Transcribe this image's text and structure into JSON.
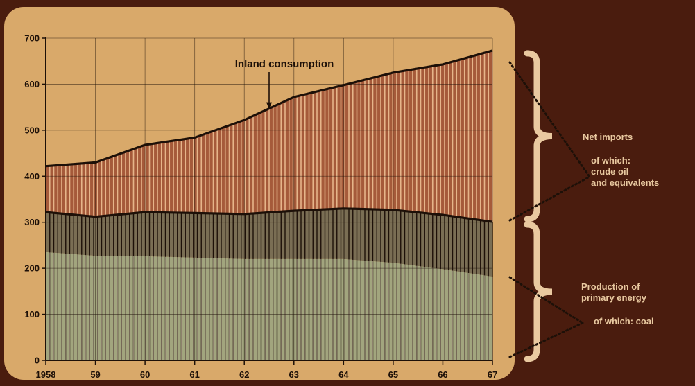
{
  "chart_data": {
    "type": "area",
    "x": [
      1958,
      1959,
      1960,
      1961,
      1962,
      1963,
      1964,
      1965,
      1966,
      1967
    ],
    "xtick_labels": [
      "1958",
      "59",
      "60",
      "61",
      "62",
      "63",
      "64",
      "65",
      "66",
      "67"
    ],
    "ylim": [
      0,
      700
    ],
    "yticks": [
      0,
      100,
      200,
      300,
      400,
      500,
      600,
      700
    ],
    "grid": true,
    "series": [
      {
        "name": "Inland consumption",
        "values": [
          422,
          430,
          468,
          484,
          522,
          572,
          598,
          625,
          643,
          673
        ]
      },
      {
        "name": "Production of primary energy",
        "values": [
          322,
          312,
          322,
          320,
          318,
          325,
          330,
          327,
          316,
          301
        ]
      },
      {
        "name": "of which: coal",
        "values": [
          235,
          227,
          226,
          223,
          220,
          220,
          220,
          212,
          198,
          182
        ]
      }
    ],
    "annotations": {
      "inland_consumption": "Inland consumption",
      "net_imports": "Net imports",
      "crude_oil": [
        "of which:",
        "crude oil",
        "and equivalents"
      ],
      "production": [
        "Production of",
        "primary energy"
      ],
      "coal": "of which: coal"
    },
    "colors": {
      "panel": "#d9a96a",
      "imports_fill": "#a55a3a",
      "production_fill": "#7a6e54",
      "coal_fill": "#a2a57e",
      "ink": "#1d1008",
      "background": "#4a1c0e",
      "brace": "#e9c9a0"
    }
  }
}
